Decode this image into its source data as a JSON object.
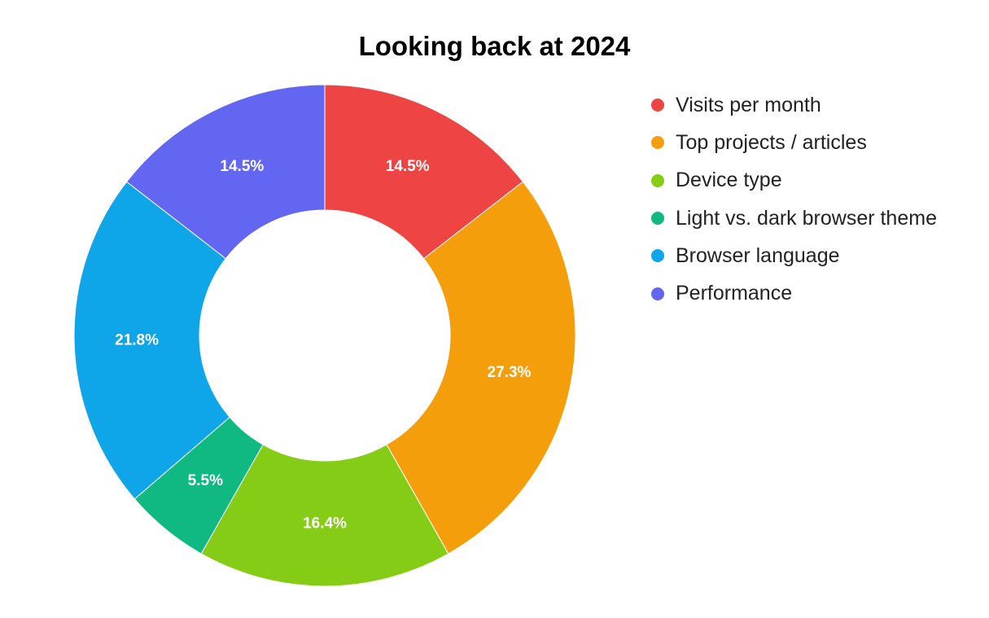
{
  "chart_data": {
    "type": "pie",
    "variant": "donut",
    "title": "Looking back at 2024",
    "legend_position": "right",
    "slices": [
      {
        "label": "Visits per month",
        "value": 14.5,
        "display": "14.5%",
        "color": "#ef4444"
      },
      {
        "label": "Top projects / articles",
        "value": 27.3,
        "display": "27.3%",
        "color": "#f59e0b"
      },
      {
        "label": "Device type",
        "value": 16.4,
        "display": "16.4%",
        "color": "#84cc16"
      },
      {
        "label": "Light vs. dark browser theme",
        "value": 5.5,
        "display": "5.5%",
        "color": "#10b981"
      },
      {
        "label": "Browser language",
        "value": 21.8,
        "display": "21.8%",
        "color": "#0ea5e9"
      },
      {
        "label": "Performance",
        "value": 14.5,
        "display": "14.5%",
        "color": "#6366f1"
      }
    ]
  }
}
